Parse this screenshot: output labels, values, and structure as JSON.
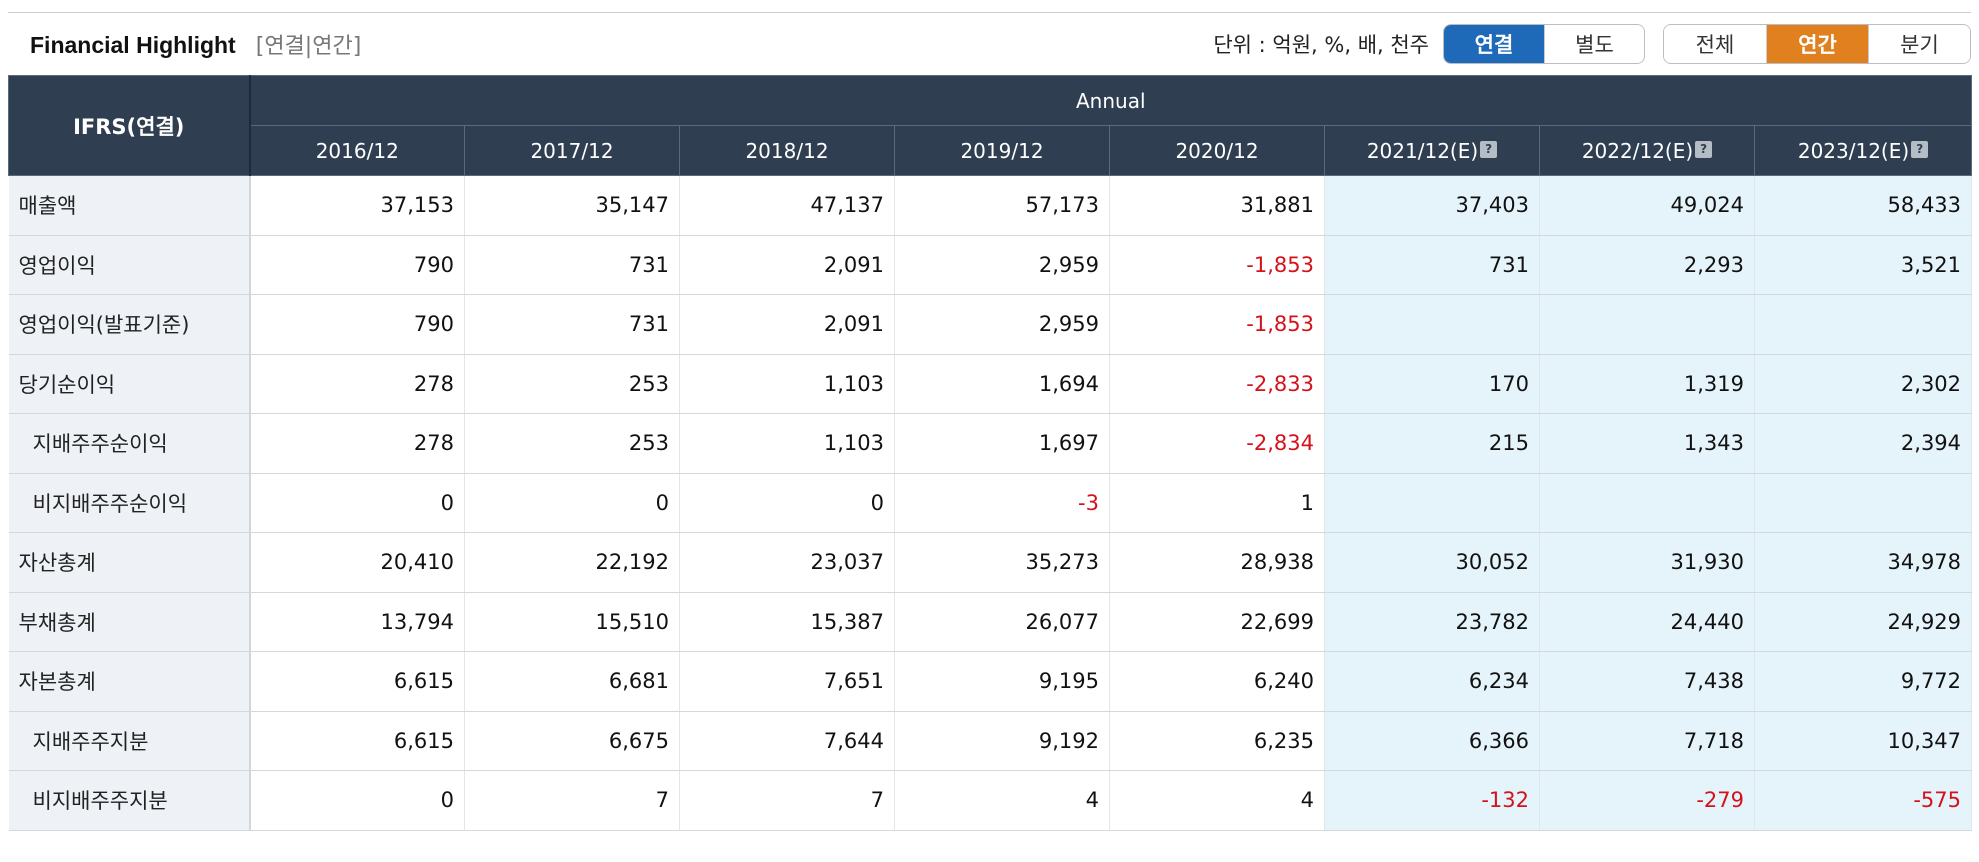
{
  "header": {
    "title": "Financial Highlight",
    "subtitle": "[연결|연간]",
    "unit_text": "단위 : 억원, %, 배, 천주",
    "consolidation_buttons": [
      "연결",
      "별도"
    ],
    "period_buttons": [
      "전체",
      "연간",
      "분기"
    ],
    "active_consolidation": "연결",
    "active_period": "연간"
  },
  "table": {
    "corner_label": "IFRS(연결)",
    "group_label": "Annual",
    "columns": [
      "2016/12",
      "2017/12",
      "2018/12",
      "2019/12",
      "2020/12",
      "2021/12(E)",
      "2022/12(E)",
      "2023/12(E)"
    ],
    "estimate_icon": "?",
    "rows": [
      {
        "label": "매출액",
        "values": [
          "37,153",
          "35,147",
          "47,137",
          "57,173",
          "31,881",
          "37,403",
          "49,024",
          "58,433"
        ]
      },
      {
        "label": "영업이익",
        "values": [
          "790",
          "731",
          "2,091",
          "2,959",
          "-1,853",
          "731",
          "2,293",
          "3,521"
        ]
      },
      {
        "label": "영업이익(발표기준)",
        "values": [
          "790",
          "731",
          "2,091",
          "2,959",
          "-1,853",
          "",
          "",
          ""
        ]
      },
      {
        "label": "당기순이익",
        "values": [
          "278",
          "253",
          "1,103",
          "1,694",
          "-2,833",
          "170",
          "1,319",
          "2,302"
        ]
      },
      {
        "label": "지배주주순이익",
        "indent": true,
        "values": [
          "278",
          "253",
          "1,103",
          "1,697",
          "-2,834",
          "215",
          "1,343",
          "2,394"
        ]
      },
      {
        "label": "비지배주주순이익",
        "indent": true,
        "values": [
          "0",
          "0",
          "0",
          "-3",
          "1",
          "",
          "",
          ""
        ]
      },
      {
        "label": "자산총계",
        "values": [
          "20,410",
          "22,192",
          "23,037",
          "35,273",
          "28,938",
          "30,052",
          "31,930",
          "34,978"
        ]
      },
      {
        "label": "부채총계",
        "values": [
          "13,794",
          "15,510",
          "15,387",
          "26,077",
          "22,699",
          "23,782",
          "24,440",
          "24,929"
        ]
      },
      {
        "label": "자본총계",
        "values": [
          "6,615",
          "6,681",
          "7,651",
          "9,195",
          "6,240",
          "6,234",
          "7,438",
          "9,772"
        ]
      },
      {
        "label": "지배주주지분",
        "indent": true,
        "values": [
          "6,615",
          "6,675",
          "7,644",
          "9,192",
          "6,235",
          "6,366",
          "7,718",
          "10,347"
        ]
      },
      {
        "label": "비지배주주지분",
        "indent": true,
        "values": [
          "0",
          "7",
          "7",
          "4",
          "4",
          "-132",
          "-279",
          "-575"
        ]
      }
    ]
  },
  "colors": {
    "header_bg": "#2f3e50",
    "active_blue": "#1e6ab8",
    "active_orange": "#e0801e",
    "negative": "#d4121a",
    "estimate_bg": "#e5f3fa"
  }
}
